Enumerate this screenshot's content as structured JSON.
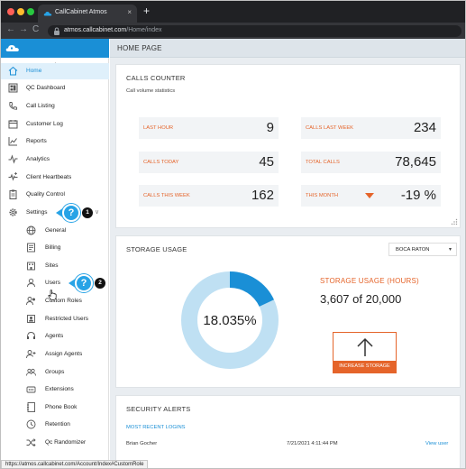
{
  "browser": {
    "tab_title": "CallCabinet Atmos",
    "tab_close": "×",
    "new_tab": "+",
    "url_host": "atmos.callcabinet.com",
    "url_path": "/Home/index",
    "status_url": "https://atmos.callcabinet.com/Account/Index#CustomRole"
  },
  "sidebar": {
    "collapse": "︿",
    "items": [
      {
        "label": "Home",
        "icon": "home-icon"
      },
      {
        "label": "QC Dashboard",
        "icon": "dashboard-icon"
      },
      {
        "label": "Call Listing",
        "icon": "phone-icon"
      },
      {
        "label": "Customer Log",
        "icon": "calendar-icon"
      },
      {
        "label": "Reports",
        "icon": "chart-icon"
      },
      {
        "label": "Analytics",
        "icon": "analytics-icon"
      },
      {
        "label": "Client Heartbeats",
        "icon": "heartbeat-icon"
      },
      {
        "label": "Quality Control",
        "icon": "clipboard-icon"
      },
      {
        "label": "Settings",
        "icon": "gear-icon"
      }
    ],
    "settings_caret": "∨",
    "sub_items": [
      {
        "label": "General",
        "icon": "globe-icon"
      },
      {
        "label": "Billing",
        "icon": "billing-icon"
      },
      {
        "label": "Sites",
        "icon": "building-icon"
      },
      {
        "label": "Users",
        "icon": "user-icon"
      },
      {
        "label": "Custom Roles",
        "icon": "roles-icon"
      },
      {
        "label": "Restricted Users",
        "icon": "restricted-icon"
      },
      {
        "label": "Agents",
        "icon": "headset-icon"
      },
      {
        "label": "Assign Agents",
        "icon": "assign-icon"
      },
      {
        "label": "Groups",
        "icon": "groups-icon"
      },
      {
        "label": "Extensions",
        "icon": "extensions-icon"
      },
      {
        "label": "Phone Book",
        "icon": "phonebook-icon"
      },
      {
        "label": "Retention",
        "icon": "retention-icon"
      },
      {
        "label": "Qc Randomizer",
        "icon": "shuffle-icon"
      }
    ]
  },
  "callouts": [
    {
      "symbol": "?",
      "number": "1"
    },
    {
      "symbol": "?",
      "number": "2"
    }
  ],
  "main": {
    "page_title": "HOME PAGE",
    "calls_counter": {
      "title": "CALLS COUNTER",
      "subtitle": "Call volume statistics",
      "stats": [
        {
          "label": "LAST HOUR",
          "value": "9"
        },
        {
          "label": "CALLS LAST WEEK",
          "value": "234"
        },
        {
          "label": "CALLS TODAY",
          "value": "45"
        },
        {
          "label": "TOTAL CALLS",
          "value": "78,645"
        },
        {
          "label": "CALLS THIS WEEK",
          "value": "162"
        },
        {
          "label": "THIS MONTH",
          "value": "-19 %",
          "trend": "down"
        }
      ]
    },
    "storage": {
      "title": "STORAGE USAGE",
      "site_select": "BOCA RATON",
      "percent_label": "18.035%",
      "percent_fraction": 0.18035,
      "usage_title": "STORAGE USAGE (HOURS)",
      "usage_value": "3,607 of 20,000",
      "increase_label": "INCREASE STORAGE"
    },
    "alerts": {
      "title": "SECURITY ALERTS",
      "link": "MOST RECENT LOGINS",
      "user": "Brian Gocher",
      "time": "7/21/2021 4:11:44 PM",
      "view": "View user"
    }
  },
  "colors": {
    "brand_blue": "#1a8fd6",
    "accent_orange": "#e5642a",
    "donut_light": "#bfe0f3",
    "donut_dark": "#1a8fd6"
  }
}
